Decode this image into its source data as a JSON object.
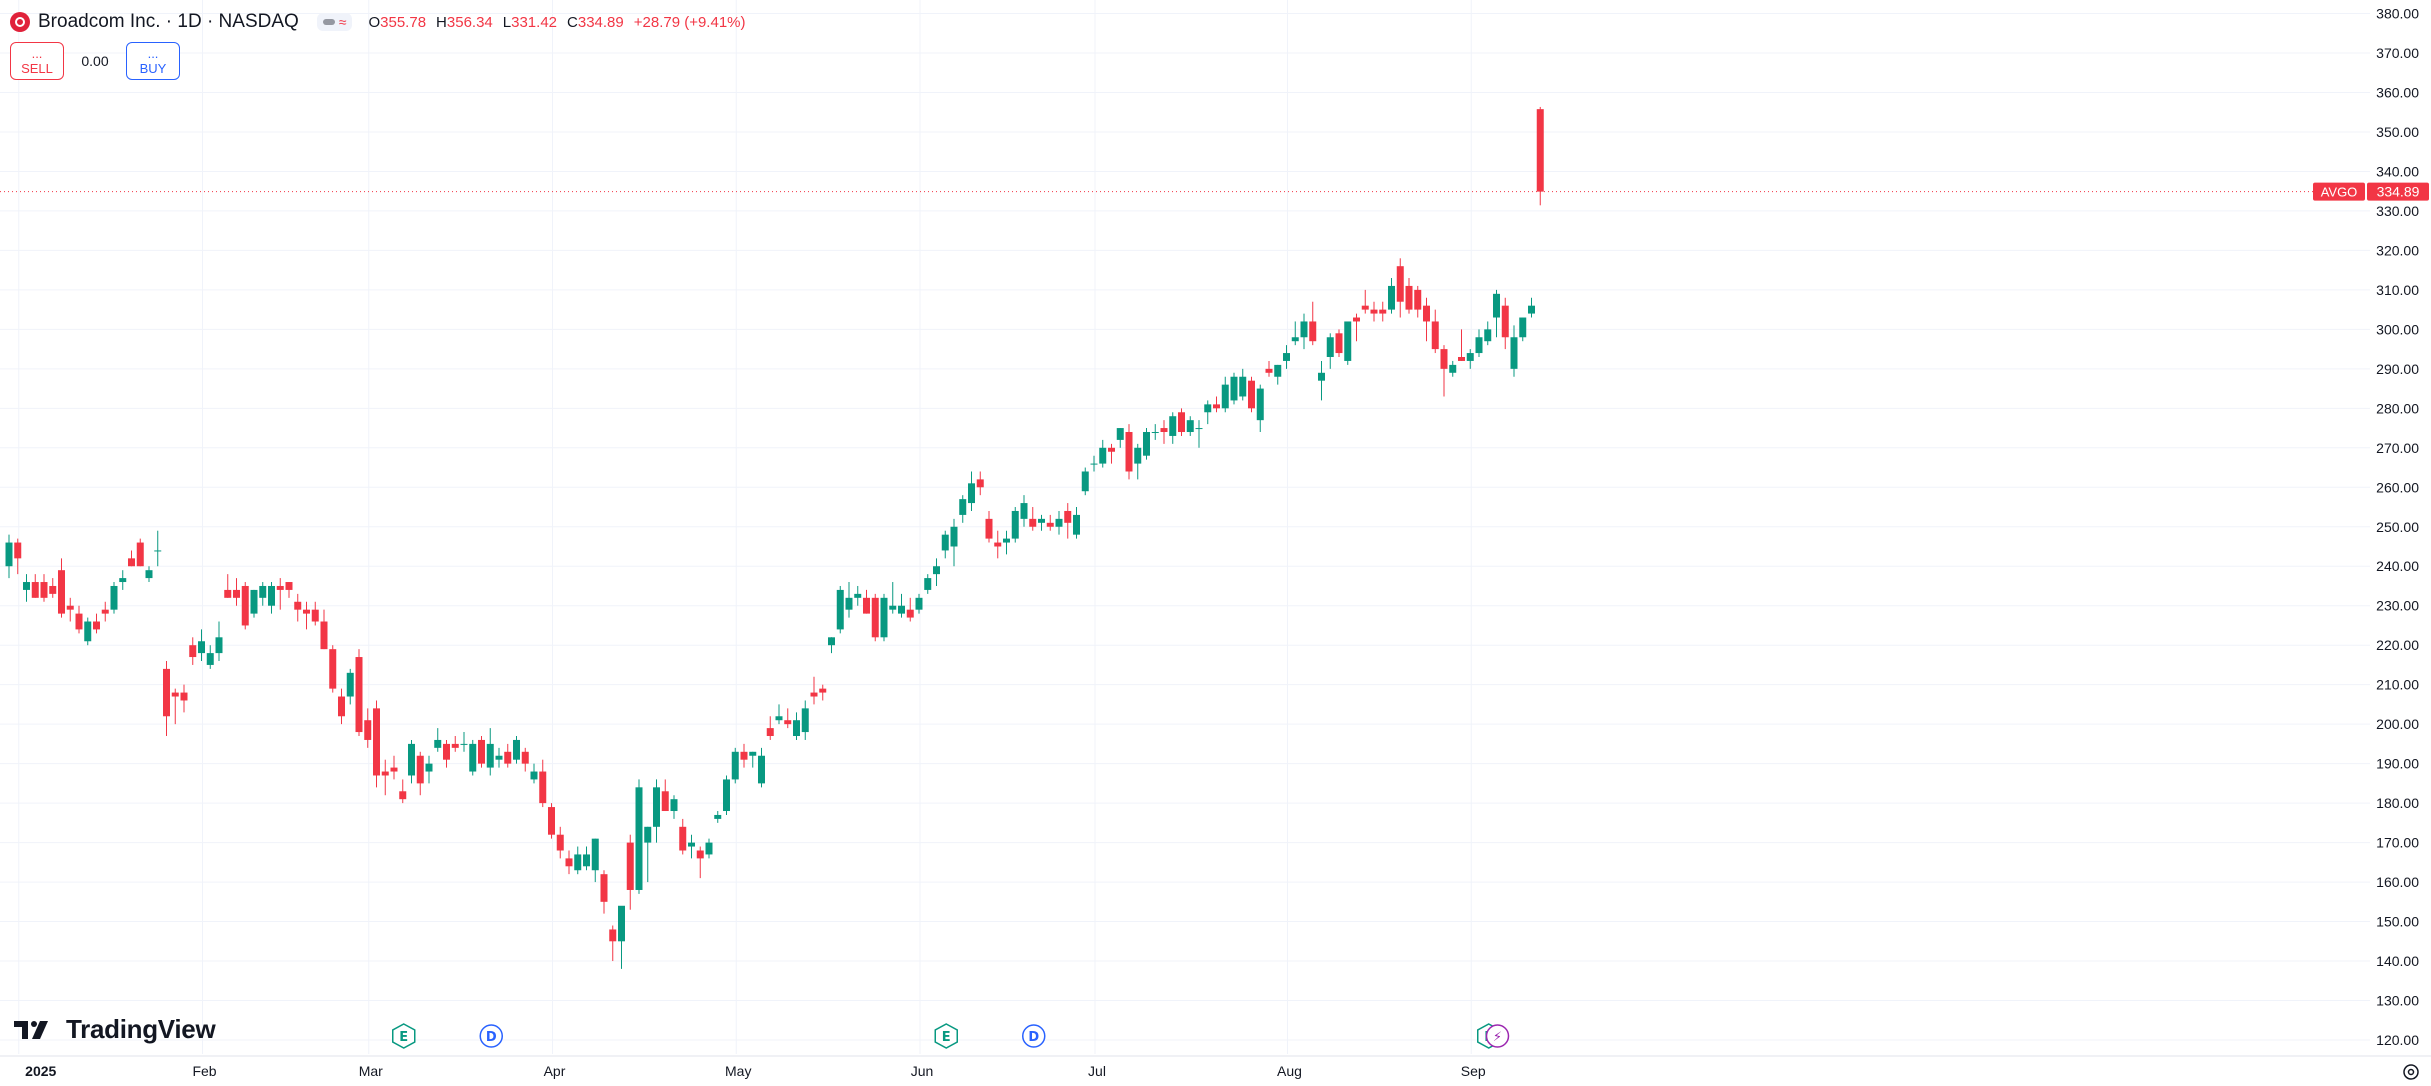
{
  "header": {
    "symbol_title": "Broadcom Inc. · 1D · NASDAQ",
    "ohlc": {
      "open_label": "O",
      "open_value": "355.78",
      "high_label": "H",
      "high_value": "356.34",
      "low_label": "L",
      "low_value": "331.42",
      "close_label": "C",
      "close_value": "334.89",
      "change": "+28.79 (+9.41%)"
    }
  },
  "trade": {
    "sell_dots": "...",
    "sell_label": "SELL",
    "spread": "0.00",
    "buy_dots": "...",
    "buy_label": "BUY"
  },
  "branding": {
    "name": "TradingView"
  },
  "colors": {
    "up": "#089981",
    "down": "#f23645",
    "grid": "#f0f3fa",
    "text": "#131722",
    "event_earnings": "#089981",
    "event_dividend": "#2962ff",
    "split": "#9c27b0"
  },
  "chart_data": {
    "type": "candlestick",
    "symbol": "AVGO",
    "last_price": "334.89",
    "ylim": [
      116,
      382
    ],
    "y_ticks": [
      "120.00",
      "130.00",
      "140.00",
      "150.00",
      "160.00",
      "170.00",
      "180.00",
      "190.00",
      "200.00",
      "210.00",
      "220.00",
      "230.00",
      "240.00",
      "250.00",
      "260.00",
      "270.00",
      "280.00",
      "290.00",
      "300.00",
      "310.00",
      "320.00",
      "330.00",
      "340.00",
      "350.00",
      "360.00",
      "370.00",
      "380.00"
    ],
    "x_ticks": [
      {
        "label": "2025",
        "index": 1
      },
      {
        "label": "Feb",
        "index": 22
      },
      {
        "label": "Mar",
        "index": 41
      },
      {
        "label": "Apr",
        "index": 62
      },
      {
        "label": "May",
        "index": 83
      },
      {
        "label": "Jun",
        "index": 104
      },
      {
        "label": "Jul",
        "index": 124
      },
      {
        "label": "Aug",
        "index": 146
      },
      {
        "label": "Sep",
        "index": 167
      }
    ],
    "events": [
      {
        "type": "earnings",
        "label": "E",
        "index": 45
      },
      {
        "type": "dividend",
        "label": "D",
        "index": 55
      },
      {
        "type": "earnings",
        "label": "E",
        "index": 107
      },
      {
        "type": "dividend",
        "label": "D",
        "index": 117
      },
      {
        "type": "earnings",
        "label": "E",
        "index": 169
      },
      {
        "type": "split",
        "label": "⚡",
        "index": 170
      }
    ],
    "candles": [
      {
        "o": 240,
        "h": 248,
        "l": 237,
        "c": 246
      },
      {
        "o": 246,
        "h": 247,
        "l": 238,
        "c": 242
      },
      {
        "o": 234,
        "h": 238,
        "l": 231,
        "c": 236
      },
      {
        "o": 236,
        "h": 238,
        "l": 232,
        "c": 232
      },
      {
        "o": 236,
        "h": 238,
        "l": 231,
        "c": 232
      },
      {
        "o": 235,
        "h": 237,
        "l": 232,
        "c": 233
      },
      {
        "o": 239,
        "h": 242,
        "l": 227,
        "c": 228
      },
      {
        "o": 230,
        "h": 232,
        "l": 226,
        "c": 229
      },
      {
        "o": 228,
        "h": 230,
        "l": 223,
        "c": 224
      },
      {
        "o": 221,
        "h": 227,
        "l": 220,
        "c": 226
      },
      {
        "o": 226,
        "h": 228,
        "l": 223,
        "c": 224
      },
      {
        "o": 229,
        "h": 231,
        "l": 226,
        "c": 228
      },
      {
        "o": 229,
        "h": 236,
        "l": 228,
        "c": 235
      },
      {
        "o": 236,
        "h": 239,
        "l": 234,
        "c": 237
      },
      {
        "o": 242,
        "h": 244,
        "l": 240,
        "c": 240
      },
      {
        "o": 246,
        "h": 247,
        "l": 240,
        "c": 240
      },
      {
        "o": 237,
        "h": 240,
        "l": 236,
        "c": 239
      },
      {
        "o": 244,
        "h": 249,
        "l": 240,
        "c": 244
      },
      {
        "o": 214,
        "h": 216,
        "l": 197,
        "c": 202
      },
      {
        "o": 208,
        "h": 209,
        "l": 200,
        "c": 207
      },
      {
        "o": 208,
        "h": 210,
        "l": 203,
        "c": 206
      },
      {
        "o": 220,
        "h": 222,
        "l": 215,
        "c": 217
      },
      {
        "o": 218,
        "h": 224,
        "l": 216,
        "c": 221
      },
      {
        "o": 215,
        "h": 220,
        "l": 214,
        "c": 218
      },
      {
        "o": 218,
        "h": 226,
        "l": 216,
        "c": 222
      },
      {
        "o": 234,
        "h": 238,
        "l": 232,
        "c": 232
      },
      {
        "o": 234,
        "h": 237,
        "l": 230,
        "c": 232
      },
      {
        "o": 235,
        "h": 236,
        "l": 224,
        "c": 225
      },
      {
        "o": 228,
        "h": 234,
        "l": 227,
        "c": 234
      },
      {
        "o": 232,
        "h": 236,
        "l": 230,
        "c": 235
      },
      {
        "o": 230,
        "h": 236,
        "l": 228,
        "c": 235
      },
      {
        "o": 235,
        "h": 237,
        "l": 229,
        "c": 234
      },
      {
        "o": 236,
        "h": 236,
        "l": 232,
        "c": 234
      },
      {
        "o": 231,
        "h": 233,
        "l": 226,
        "c": 229
      },
      {
        "o": 229,
        "h": 231,
        "l": 224,
        "c": 228
      },
      {
        "o": 229,
        "h": 231,
        "l": 225,
        "c": 226
      },
      {
        "o": 226,
        "h": 229,
        "l": 219,
        "c": 219
      },
      {
        "o": 219,
        "h": 220,
        "l": 208,
        "c": 209
      },
      {
        "o": 207,
        "h": 209,
        "l": 200,
        "c": 202
      },
      {
        "o": 207,
        "h": 214,
        "l": 205,
        "c": 213
      },
      {
        "o": 217,
        "h": 219,
        "l": 197,
        "c": 198
      },
      {
        "o": 201,
        "h": 204,
        "l": 194,
        "c": 196
      },
      {
        "o": 204,
        "h": 206,
        "l": 184,
        "c": 187
      },
      {
        "o": 188,
        "h": 191,
        "l": 182,
        "c": 187
      },
      {
        "o": 189,
        "h": 192,
        "l": 186,
        "c": 188
      },
      {
        "o": 183,
        "h": 186,
        "l": 180,
        "c": 181
      },
      {
        "o": 187,
        "h": 196,
        "l": 185,
        "c": 195
      },
      {
        "o": 192,
        "h": 193,
        "l": 182,
        "c": 185
      },
      {
        "o": 188,
        "h": 192,
        "l": 185,
        "c": 190
      },
      {
        "o": 194,
        "h": 199,
        "l": 193,
        "c": 196
      },
      {
        "o": 195,
        "h": 196,
        "l": 189,
        "c": 191
      },
      {
        "o": 195,
        "h": 197,
        "l": 193,
        "c": 194
      },
      {
        "o": 195,
        "h": 198,
        "l": 193,
        "c": 195
      },
      {
        "o": 188,
        "h": 196,
        "l": 187,
        "c": 195
      },
      {
        "o": 196,
        "h": 197,
        "l": 189,
        "c": 190
      },
      {
        "o": 189,
        "h": 199,
        "l": 187,
        "c": 195
      },
      {
        "o": 191,
        "h": 194,
        "l": 189,
        "c": 192
      },
      {
        "o": 193,
        "h": 195,
        "l": 189,
        "c": 190
      },
      {
        "o": 191,
        "h": 197,
        "l": 190,
        "c": 196
      },
      {
        "o": 193,
        "h": 194,
        "l": 188,
        "c": 190
      },
      {
        "o": 186,
        "h": 190,
        "l": 185,
        "c": 188
      },
      {
        "o": 188,
        "h": 191,
        "l": 179,
        "c": 180
      },
      {
        "o": 179,
        "h": 180,
        "l": 171,
        "c": 172
      },
      {
        "o": 172,
        "h": 174,
        "l": 166,
        "c": 168
      },
      {
        "o": 166,
        "h": 168,
        "l": 162,
        "c": 164
      },
      {
        "o": 163,
        "h": 169,
        "l": 162,
        "c": 167
      },
      {
        "o": 164,
        "h": 169,
        "l": 163,
        "c": 167
      },
      {
        "o": 163,
        "h": 171,
        "l": 160,
        "c": 171
      },
      {
        "o": 162,
        "h": 163,
        "l": 152,
        "c": 155
      },
      {
        "o": 148,
        "h": 149,
        "l": 140,
        "c": 145
      },
      {
        "o": 145,
        "h": 153,
        "l": 138,
        "c": 154
      },
      {
        "o": 170,
        "h": 172,
        "l": 153,
        "c": 158
      },
      {
        "o": 158,
        "h": 186,
        "l": 157,
        "c": 184
      },
      {
        "o": 170,
        "h": 174,
        "l": 160,
        "c": 174
      },
      {
        "o": 174,
        "h": 186,
        "l": 170,
        "c": 184
      },
      {
        "o": 183,
        "h": 186,
        "l": 178,
        "c": 178
      },
      {
        "o": 178,
        "h": 182,
        "l": 176,
        "c": 181
      },
      {
        "o": 174,
        "h": 176,
        "l": 167,
        "c": 168
      },
      {
        "o": 169,
        "h": 172,
        "l": 166,
        "c": 170
      },
      {
        "o": 168,
        "h": 169,
        "l": 161,
        "c": 166
      },
      {
        "o": 167,
        "h": 171,
        "l": 166,
        "c": 170
      },
      {
        "o": 176,
        "h": 178,
        "l": 175,
        "c": 177
      },
      {
        "o": 178,
        "h": 187,
        "l": 177,
        "c": 186
      },
      {
        "o": 186,
        "h": 194,
        "l": 185,
        "c": 193
      },
      {
        "o": 193,
        "h": 195,
        "l": 189,
        "c": 191
      },
      {
        "o": 192,
        "h": 193,
        "l": 189,
        "c": 193
      },
      {
        "o": 185,
        "h": 194,
        "l": 184,
        "c": 192
      },
      {
        "o": 199,
        "h": 202,
        "l": 196,
        "c": 197
      },
      {
        "o": 201,
        "h": 205,
        "l": 200,
        "c": 202
      },
      {
        "o": 201,
        "h": 204,
        "l": 199,
        "c": 200
      },
      {
        "o": 197,
        "h": 203,
        "l": 196,
        "c": 201
      },
      {
        "o": 198,
        "h": 206,
        "l": 196,
        "c": 204
      },
      {
        "o": 208,
        "h": 212,
        "l": 205,
        "c": 207
      },
      {
        "o": 209,
        "h": 210,
        "l": 206,
        "c": 208
      },
      {
        "o": 220,
        "h": 222,
        "l": 218,
        "c": 222
      },
      {
        "o": 224,
        "h": 235,
        "l": 223,
        "c": 234
      },
      {
        "o": 229,
        "h": 236,
        "l": 227,
        "c": 232
      },
      {
        "o": 232,
        "h": 235,
        "l": 230,
        "c": 233
      },
      {
        "o": 232,
        "h": 234,
        "l": 228,
        "c": 228
      },
      {
        "o": 232,
        "h": 233,
        "l": 221,
        "c": 222
      },
      {
        "o": 222,
        "h": 233,
        "l": 221,
        "c": 232
      },
      {
        "o": 229,
        "h": 236,
        "l": 228,
        "c": 230
      },
      {
        "o": 228,
        "h": 233,
        "l": 227,
        "c": 230
      },
      {
        "o": 229,
        "h": 232,
        "l": 226,
        "c": 227
      },
      {
        "o": 229,
        "h": 233,
        "l": 228,
        "c": 232
      },
      {
        "o": 234,
        "h": 238,
        "l": 233,
        "c": 237
      },
      {
        "o": 238,
        "h": 242,
        "l": 235,
        "c": 240
      },
      {
        "o": 244,
        "h": 249,
        "l": 242,
        "c": 248
      },
      {
        "o": 245,
        "h": 252,
        "l": 240,
        "c": 250
      },
      {
        "o": 253,
        "h": 258,
        "l": 251,
        "c": 257
      },
      {
        "o": 256,
        "h": 264,
        "l": 254,
        "c": 261
      },
      {
        "o": 262,
        "h": 264,
        "l": 258,
        "c": 260
      },
      {
        "o": 252,
        "h": 254,
        "l": 246,
        "c": 247
      },
      {
        "o": 246,
        "h": 249,
        "l": 242,
        "c": 245
      },
      {
        "o": 246,
        "h": 249,
        "l": 243,
        "c": 247
      },
      {
        "o": 247,
        "h": 255,
        "l": 246,
        "c": 254
      },
      {
        "o": 252,
        "h": 258,
        "l": 250,
        "c": 256
      },
      {
        "o": 252,
        "h": 255,
        "l": 249,
        "c": 250
      },
      {
        "o": 251,
        "h": 253,
        "l": 249,
        "c": 252
      },
      {
        "o": 251,
        "h": 253,
        "l": 249,
        "c": 250
      },
      {
        "o": 250,
        "h": 254,
        "l": 248,
        "c": 252
      },
      {
        "o": 254,
        "h": 256,
        "l": 247,
        "c": 251
      },
      {
        "o": 248,
        "h": 255,
        "l": 247,
        "c": 253
      },
      {
        "o": 259,
        "h": 265,
        "l": 258,
        "c": 264
      },
      {
        "o": 266,
        "h": 268,
        "l": 264,
        "c": 266
      },
      {
        "o": 266,
        "h": 272,
        "l": 265,
        "c": 270
      },
      {
        "o": 270,
        "h": 271,
        "l": 266,
        "c": 269
      },
      {
        "o": 272,
        "h": 275,
        "l": 270,
        "c": 275
      },
      {
        "o": 274,
        "h": 276,
        "l": 262,
        "c": 264
      },
      {
        "o": 266,
        "h": 271,
        "l": 262,
        "c": 270
      },
      {
        "o": 268,
        "h": 275,
        "l": 267,
        "c": 274
      },
      {
        "o": 274,
        "h": 276,
        "l": 272,
        "c": 274
      },
      {
        "o": 275,
        "h": 277,
        "l": 271,
        "c": 274
      },
      {
        "o": 273,
        "h": 279,
        "l": 271,
        "c": 278
      },
      {
        "o": 279,
        "h": 280,
        "l": 273,
        "c": 274
      },
      {
        "o": 274,
        "h": 278,
        "l": 273,
        "c": 277
      },
      {
        "o": 275,
        "h": 277,
        "l": 270,
        "c": 275
      },
      {
        "o": 279,
        "h": 282,
        "l": 276,
        "c": 281
      },
      {
        "o": 281,
        "h": 283,
        "l": 279,
        "c": 280
      },
      {
        "o": 280,
        "h": 288,
        "l": 279,
        "c": 286
      },
      {
        "o": 282,
        "h": 289,
        "l": 281,
        "c": 288
      },
      {
        "o": 283,
        "h": 290,
        "l": 282,
        "c": 288
      },
      {
        "o": 287,
        "h": 288,
        "l": 279,
        "c": 280
      },
      {
        "o": 277,
        "h": 286,
        "l": 274,
        "c": 285
      },
      {
        "o": 290,
        "h": 292,
        "l": 288,
        "c": 289
      },
      {
        "o": 288,
        "h": 291,
        "l": 286,
        "c": 291
      },
      {
        "o": 292,
        "h": 296,
        "l": 290,
        "c": 294
      },
      {
        "o": 297,
        "h": 302,
        "l": 296,
        "c": 298
      },
      {
        "o": 298,
        "h": 304,
        "l": 295,
        "c": 302
      },
      {
        "o": 302,
        "h": 307,
        "l": 296,
        "c": 297
      },
      {
        "o": 287,
        "h": 292,
        "l": 282,
        "c": 289
      },
      {
        "o": 293,
        "h": 299,
        "l": 290,
        "c": 298
      },
      {
        "o": 299,
        "h": 300,
        "l": 293,
        "c": 294
      },
      {
        "o": 292,
        "h": 301,
        "l": 291,
        "c": 302
      },
      {
        "o": 303,
        "h": 304,
        "l": 297,
        "c": 302
      },
      {
        "o": 306,
        "h": 310,
        "l": 304,
        "c": 305
      },
      {
        "o": 305,
        "h": 307,
        "l": 302,
        "c": 304
      },
      {
        "o": 305,
        "h": 307,
        "l": 302,
        "c": 304
      },
      {
        "o": 305,
        "h": 313,
        "l": 304,
        "c": 311
      },
      {
        "o": 316,
        "h": 318,
        "l": 303,
        "c": 307
      },
      {
        "o": 311,
        "h": 313,
        "l": 304,
        "c": 305
      },
      {
        "o": 310,
        "h": 311,
        "l": 303,
        "c": 305
      },
      {
        "o": 306,
        "h": 308,
        "l": 297,
        "c": 302
      },
      {
        "o": 302,
        "h": 305,
        "l": 294,
        "c": 295
      },
      {
        "o": 295,
        "h": 296,
        "l": 283,
        "c": 290
      },
      {
        "o": 289,
        "h": 292,
        "l": 288,
        "c": 291
      },
      {
        "o": 293,
        "h": 300,
        "l": 292,
        "c": 292
      },
      {
        "o": 292,
        "h": 295,
        "l": 290,
        "c": 294
      },
      {
        "o": 294,
        "h": 300,
        "l": 293,
        "c": 298
      },
      {
        "o": 297,
        "h": 302,
        "l": 296,
        "c": 300
      },
      {
        "o": 303,
        "h": 310,
        "l": 298,
        "c": 309
      },
      {
        "o": 306,
        "h": 308,
        "l": 295,
        "c": 298
      },
      {
        "o": 290,
        "h": 301,
        "l": 288,
        "c": 298
      },
      {
        "o": 298,
        "h": 303,
        "l": 297,
        "c": 303
      },
      {
        "o": 304,
        "h": 308,
        "l": 303,
        "c": 306
      },
      {
        "o": 355.78,
        "h": 356.34,
        "l": 331.42,
        "c": 334.89
      }
    ]
  }
}
